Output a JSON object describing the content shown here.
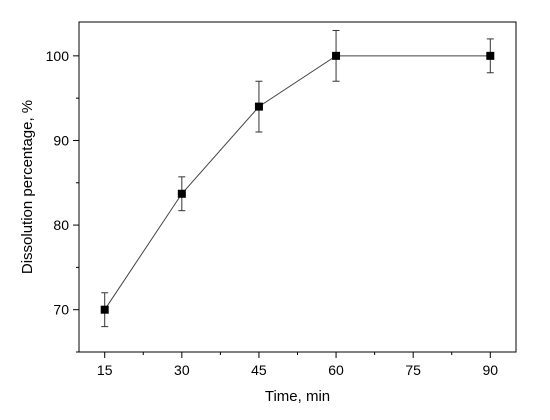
{
  "chart_data": {
    "type": "line",
    "title": "",
    "xlabel": "Time, min",
    "ylabel": "Dissolution percentage, %",
    "xlim": [
      10,
      95
    ],
    "ylim": [
      65,
      104
    ],
    "xticks": [
      15,
      30,
      45,
      60,
      75,
      90
    ],
    "yticks": [
      70,
      80,
      90,
      100
    ],
    "xtick_labels": [
      "15",
      "30",
      "45",
      "60",
      "75",
      "90"
    ],
    "ytick_labels": [
      "70",
      "80",
      "90",
      "100"
    ],
    "grid": false,
    "legend": "none",
    "series": [
      {
        "x": [
          15,
          30,
          45,
          60,
          90
        ],
        "y": [
          70,
          83.7,
          94,
          100,
          100
        ],
        "error": [
          2,
          2,
          3,
          3,
          2
        ],
        "marker": "square",
        "color": "#000000"
      }
    ]
  }
}
